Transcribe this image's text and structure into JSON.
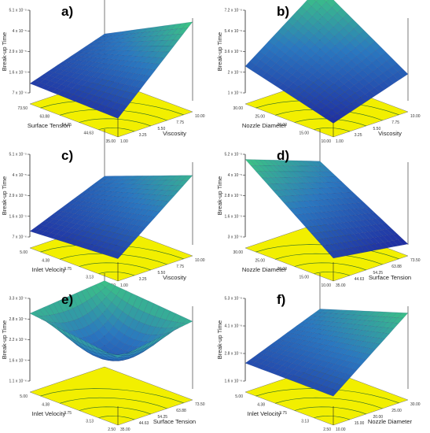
{
  "chart_data": [
    {
      "type": "surface3d",
      "panel": "a)",
      "zlabel": "Break-up Time",
      "xlabel": "Viscosity",
      "ylabel": "Surface Tension",
      "z_ticks": [
        "7 x 10⁻⁶",
        "1.6 x 10⁻⁵",
        "2.9 x 10⁻⁵",
        "4 x 10⁻⁵",
        "5.1 x 10⁻⁵"
      ],
      "x_ticks": [
        "1.00",
        "3.25",
        "5.50",
        "7.75",
        "10.00"
      ],
      "y_ticks": [
        "35.00",
        "44.63",
        "54.25",
        "63.88",
        "73.50"
      ],
      "zlim": [
        7e-06,
        5.1e-05
      ],
      "surface_corners": {
        "near": 1.1e-05,
        "right": 4.9e-05,
        "left": 1.2e-05,
        "back": 2.5e-05
      }
    },
    {
      "type": "surface3d",
      "panel": "b)",
      "zlabel": "Break-up Time",
      "xlabel": "Viscosity",
      "ylabel": "Nozzle Diameter",
      "z_ticks": [
        "1 x 10⁻⁶",
        "2 x 10⁻⁶",
        "3.6 x 10⁻⁶",
        "5.4 x 10⁻⁶",
        "7.2 x 10⁻⁶"
      ],
      "x_ticks": [
        "1.00",
        "3.25",
        "5.50",
        "7.75",
        "10.00"
      ],
      "y_ticks": [
        "10.00",
        "15.00",
        "20.00",
        "25.00",
        "30.00"
      ],
      "zlim": [
        1e-06,
        7.2e-06
      ],
      "surface_corners": {
        "near": 1.2e-06,
        "right": 3e-06,
        "left": 3e-06,
        "back": 7.1e-06
      }
    },
    {
      "type": "surface3d",
      "panel": "c)",
      "zlabel": "Break-up Time",
      "xlabel": "Viscosity",
      "ylabel": "Inlet Velocity",
      "z_ticks": [
        "7 x 10⁻⁶",
        "1.6 x 10⁻⁵",
        "2.9 x 10⁻⁵",
        "4 x 10⁻⁵",
        "5.1 x 10⁻⁵"
      ],
      "x_ticks": [
        "1.00",
        "3.25",
        "5.50",
        "7.75",
        "10.00"
      ],
      "y_ticks": [
        "2.50",
        "3.13",
        "3.75",
        "4.38",
        "5.00"
      ],
      "zlim": [
        7e-06,
        5.1e-05
      ],
      "surface_corners": {
        "near": 1.3e-05,
        "right": 4.4e-05,
        "left": 1e-05,
        "back": 2.6e-05
      }
    },
    {
      "type": "surface3d",
      "panel": "d)",
      "zlabel": "Break-up Time",
      "xlabel": "Surface Tension",
      "ylabel": "Nozzle Diameter",
      "z_ticks": [
        "3 x 10⁻⁶",
        "1.6 x 10⁻⁵",
        "2.8 x 10⁻⁵",
        "4 x 10⁻⁵",
        "5.2 x 10⁻⁵"
      ],
      "x_ticks": [
        "35.00",
        "44.63",
        "54.25",
        "63.88",
        "73.50"
      ],
      "y_ticks": [
        "10.00",
        "15.00",
        "20.00",
        "25.00",
        "30.00"
      ],
      "zlim": [
        3e-06,
        5.2e-05
      ],
      "surface_corners": {
        "near": 1e-05,
        "right": 3.5e-06,
        "left": 4.9e-05,
        "back": 3.3e-05
      }
    },
    {
      "type": "surface3d",
      "panel": "e)",
      "zlabel": "Break-up Time",
      "xlabel": "Surface Tension",
      "ylabel": "Inlet Velocity",
      "z_ticks": [
        "1.1 x 10⁻⁶",
        "1.6 x 10⁻⁶",
        "2.2 x 10⁻⁶",
        "2.8 x 10⁻⁶",
        "3.3 x 10⁻⁶"
      ],
      "x_ticks": [
        "35.00",
        "44.63",
        "54.25",
        "63.88",
        "73.50"
      ],
      "y_ticks": [
        "2.50",
        "3.13",
        "3.75",
        "4.38",
        "5.00"
      ],
      "zlim": [
        1.1e-06,
        3.3e-06
      ],
      "surface_corners": {
        "near": 2.6e-06,
        "right": 2.9e-06,
        "left": 2.9e-06,
        "back": 3.1e-06
      },
      "center_sag": 1e-06
    },
    {
      "type": "surface3d",
      "panel": "f)",
      "zlabel": "Break-up Time",
      "xlabel": "Nozzle Diameter",
      "ylabel": "Inlet Velocity",
      "z_ticks": [
        "1.6 x 10⁻⁶",
        "2.8 x 10⁻⁶",
        "4.1 x 10⁻⁶",
        "5.3 x 10⁻⁶"
      ],
      "x_ticks": [
        "10.00",
        "15.00",
        "20.00",
        "25.00",
        "30.00"
      ],
      "y_ticks": [
        "2.50",
        "3.13",
        "3.75",
        "4.38",
        "5.00"
      ],
      "zlim": [
        1.6e-06,
        5.3e-06
      ],
      "surface_corners": {
        "near": 2.4e-06,
        "right": 5e-06,
        "left": 2.4e-06,
        "back": 3.7e-06
      }
    }
  ],
  "colors": {
    "floor": "#f2ef00",
    "floor_contour": "#2a6a2a",
    "surface_low": "#1f2aa0",
    "surface_mid": "#2a78c0",
    "surface_high": "#3fd07a",
    "axis": "#222222"
  }
}
